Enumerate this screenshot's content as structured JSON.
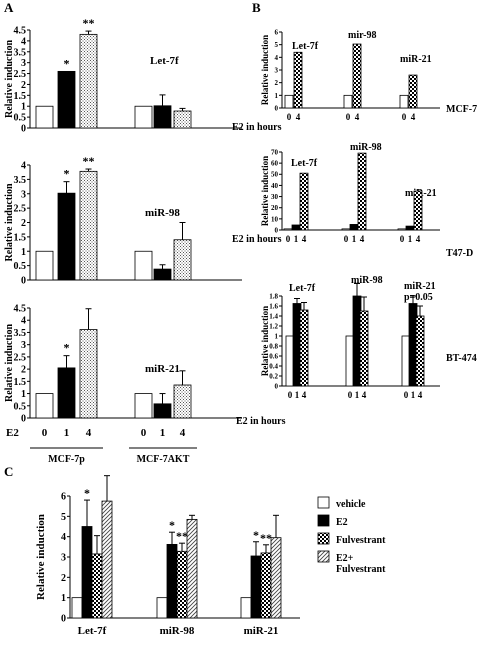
{
  "figure": {
    "panel_labels": [
      "A",
      "B",
      "C"
    ],
    "ylabel": "Relative induction",
    "legend": [
      "vehicle",
      "E2",
      "Fulvestrant",
      "E2+\nFulvestrant"
    ]
  },
  "chart_data": [
    {
      "type": "bar",
      "panel": "A",
      "title": "Let-7f",
      "ylabel": "Relative induction",
      "ylim": [
        0,
        4.5
      ],
      "yticks": [
        "0",
        "0.5",
        "1",
        "1.5",
        "2",
        "2.5",
        "3",
        "3.5",
        "4",
        "4.5"
      ],
      "groups": [
        {
          "name": "MCF-7p",
          "x": [
            "0",
            "1",
            "4"
          ],
          "values": [
            1.0,
            2.6,
            4.3
          ],
          "errors": [
            0,
            0,
            0.15
          ],
          "sig": [
            "",
            "*",
            "**"
          ]
        },
        {
          "name": "MCF-7AKT",
          "x": [
            "0",
            "1",
            "4"
          ],
          "values": [
            1.0,
            1.02,
            0.78
          ],
          "errors": [
            0,
            0.5,
            0.12
          ],
          "sig": [
            "",
            "",
            ""
          ]
        }
      ]
    },
    {
      "type": "bar",
      "panel": "A",
      "title": "miR-98",
      "ylabel": "Relative induction",
      "ylim": [
        0,
        4
      ],
      "yticks": [
        "0",
        "0.5",
        "1",
        "1.5",
        "2",
        "2.5",
        "3",
        "3.5",
        "4"
      ],
      "groups": [
        {
          "name": "MCF-7p",
          "x": [
            "0",
            "1",
            "4"
          ],
          "values": [
            1.0,
            3.02,
            3.78
          ],
          "errors": [
            0,
            0.4,
            0.08
          ],
          "sig": [
            "",
            "*",
            "**"
          ]
        },
        {
          "name": "MCF-7AKT",
          "x": [
            "0",
            "1",
            "4"
          ],
          "values": [
            1.0,
            0.38,
            1.4
          ],
          "errors": [
            0,
            0.15,
            0.6
          ],
          "sig": [
            "",
            "",
            ""
          ]
        }
      ]
    },
    {
      "type": "bar",
      "panel": "A",
      "title": "miR-21",
      "ylabel": "Relative induction",
      "ylim": [
        0,
        4.5
      ],
      "yticks": [
        "0",
        "0.5",
        "1",
        "1.5",
        "2",
        "2.5",
        "3",
        "3.5",
        "4",
        "4.5"
      ],
      "xlabel": "E2",
      "groups": [
        {
          "name": "MCF-7p",
          "x": [
            "0",
            "1",
            "4"
          ],
          "values": [
            1.0,
            2.05,
            3.62
          ],
          "errors": [
            0,
            0.5,
            0.85
          ],
          "sig": [
            "",
            "*",
            ""
          ]
        },
        {
          "name": "MCF-7AKT",
          "x": [
            "0",
            "1",
            "4"
          ],
          "values": [
            1.0,
            0.58,
            1.35
          ],
          "errors": [
            0,
            0.42,
            0.58
          ],
          "sig": [
            "",
            "",
            ""
          ]
        }
      ]
    },
    {
      "type": "bar",
      "panel": "B",
      "cell_line": "MCF-7",
      "ylabel": "Relative induction",
      "ylim": [
        0,
        6
      ],
      "yticks": [
        "0",
        "1",
        "2",
        "3",
        "4",
        "5",
        "6"
      ],
      "xlabel": "E2 in hours",
      "groups": [
        {
          "name": "Let-7f",
          "x": [
            "0",
            "4"
          ],
          "values": [
            1.0,
            4.4
          ]
        },
        {
          "name": "mir-98",
          "x": [
            "0",
            "4"
          ],
          "values": [
            1.0,
            5.05
          ]
        },
        {
          "name": "miR-21",
          "x": [
            "0",
            "4"
          ],
          "values": [
            1.0,
            2.6
          ]
        }
      ]
    },
    {
      "type": "bar",
      "panel": "B",
      "cell_line": "T47-D",
      "ylabel": "Relative induction",
      "ylim": [
        0,
        70
      ],
      "yticks": [
        "0",
        "10",
        "20",
        "30",
        "40",
        "50",
        "60",
        "70"
      ],
      "xlabel": "E2 in hours",
      "groups": [
        {
          "name": "Let-7f",
          "x": [
            "0",
            "1",
            "4"
          ],
          "values": [
            1.0,
            4.5,
            51
          ]
        },
        {
          "name": "miR-98",
          "x": [
            "0",
            "1",
            "4"
          ],
          "values": [
            1.0,
            5.0,
            69
          ]
        },
        {
          "name": "miR-21",
          "x": [
            "0",
            "1",
            "4"
          ],
          "values": [
            1.0,
            3.5,
            35
          ]
        }
      ]
    },
    {
      "type": "bar",
      "panel": "B",
      "cell_line": "BT-474",
      "ylabel": "Relative induction",
      "ylim": [
        0,
        1.8
      ],
      "yticks": [
        "0",
        "0.2",
        "0.4",
        "0.6",
        "0.8",
        "1",
        "1.2",
        "1.4",
        "1.6",
        "1.8"
      ],
      "xlabel": "E2 in hours",
      "groups": [
        {
          "name": "Let-7f",
          "x": [
            "0",
            "1",
            "4"
          ],
          "values": [
            1.0,
            1.65,
            1.52
          ],
          "errors": [
            0,
            0.1,
            0.15
          ]
        },
        {
          "name": "miR-98",
          "x": [
            "0",
            "1",
            "4"
          ],
          "values": [
            1.0,
            1.8,
            1.5
          ],
          "errors": [
            0,
            0.25,
            0.28
          ]
        },
        {
          "name": "miR-21\np=0.05",
          "x": [
            "0",
            "1",
            "4"
          ],
          "values": [
            1.0,
            1.65,
            1.4
          ],
          "errors": [
            0,
            0.15,
            0.2
          ]
        }
      ]
    },
    {
      "type": "bar",
      "panel": "C",
      "ylabel": "Relative induction",
      "ylim": [
        0,
        6
      ],
      "yticks": [
        "0",
        "1",
        "2",
        "3",
        "4",
        "5",
        "6"
      ],
      "categories": [
        "Let-7f",
        "miR-98",
        "miR-21"
      ],
      "series": [
        {
          "name": "vehicle",
          "values": [
            1.0,
            1.0,
            1.0
          ],
          "errors": [
            0,
            0,
            0
          ],
          "sig": [
            "",
            "",
            ""
          ]
        },
        {
          "name": "E2",
          "values": [
            4.5,
            3.62,
            3.05
          ],
          "errors": [
            1.3,
            0.6,
            0.7
          ],
          "sig": [
            "*",
            "*",
            "*"
          ]
        },
        {
          "name": "Fulvestrant",
          "values": [
            3.15,
            3.28,
            3.2
          ],
          "errors": [
            0.9,
            0.4,
            0.4
          ],
          "sig": [
            "",
            "**",
            "**"
          ]
        },
        {
          "name": "E2+\nFulvestrant",
          "values": [
            5.75,
            4.85,
            3.95
          ],
          "errors": [
            1.25,
            0.2,
            1.1
          ],
          "sig": [
            "",
            "",
            ""
          ]
        }
      ]
    }
  ]
}
